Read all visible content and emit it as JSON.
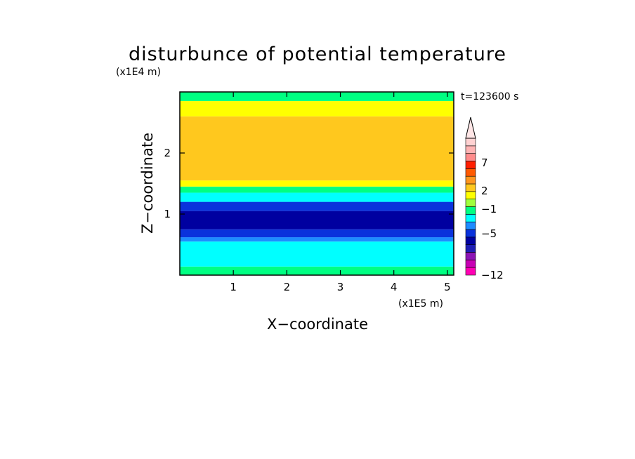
{
  "chart_data": {
    "type": "heatmap",
    "title": "disturbunce of potential temperature",
    "time_label": "t=123600 s",
    "xlabel": "X−coordinate",
    "ylabel": "Z−coordinate",
    "x_unit": "(x1E5 m)",
    "y_unit": "(x1E4 m)",
    "xlim": [
      0,
      5.12
    ],
    "ylim": [
      0,
      3.0
    ],
    "x_ticks": [
      1,
      2,
      3,
      4,
      5
    ],
    "x_tick_labels": [
      "1",
      "2",
      "3",
      "4",
      "5"
    ],
    "y_ticks": [
      1,
      2
    ],
    "y_tick_labels": [
      "1",
      "2"
    ],
    "colorbar": {
      "bands": [
        {
          "color": "#ff00b4"
        },
        {
          "color": "#c800b4"
        },
        {
          "color": "#8c14b4"
        },
        {
          "color": "#1e1eb4"
        },
        {
          "color": "#0000a0"
        },
        {
          "color": "#0a32dc"
        },
        {
          "color": "#1e8cff"
        },
        {
          "color": "#00ffff"
        },
        {
          "color": "#00ff82"
        },
        {
          "color": "#a0ff3c"
        },
        {
          "color": "#ffff00"
        },
        {
          "color": "#ffc81e"
        },
        {
          "color": "#ff961e"
        },
        {
          "color": "#ff5a00"
        },
        {
          "color": "#ff1e00"
        },
        {
          "color": "#ff8c8c"
        },
        {
          "color": "#ffb4b4"
        },
        {
          "color": "#ffd2d2"
        }
      ],
      "labels": [
        "−12",
        "−5",
        "−1",
        "2",
        "7"
      ],
      "overflow_color": "#ffe6e6"
    },
    "z_levels": [
      {
        "z": 0.0,
        "color": "#00ff82"
      },
      {
        "z": 0.14,
        "color": "#00ffff"
      },
      {
        "z": 0.55,
        "color": "#1e8cff"
      },
      {
        "z": 0.62,
        "color": "#0a32dc"
      },
      {
        "z": 0.75,
        "color": "#0000a0"
      },
      {
        "z": 1.05,
        "color": "#0a32dc"
      },
      {
        "z": 1.2,
        "color": "#00ffff"
      },
      {
        "z": 1.35,
        "color": "#00ff82"
      },
      {
        "z": 1.45,
        "color": "#ffff00"
      },
      {
        "z": 1.55,
        "color": "#ffc81e"
      },
      {
        "z": 2.6,
        "color": "#ffff00"
      },
      {
        "z": 2.85,
        "color": "#00ff82"
      }
    ]
  }
}
